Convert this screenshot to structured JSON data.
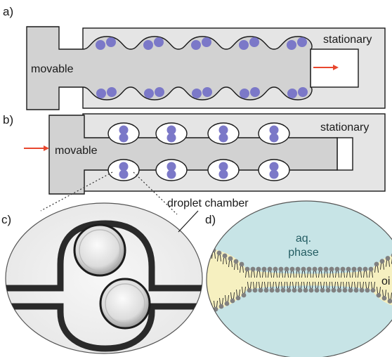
{
  "panels": {
    "a": {
      "letter": "a)",
      "movable": "movable",
      "stationary": "stationary"
    },
    "b": {
      "letter": "b)",
      "movable": "movable",
      "stationary": "stationary"
    },
    "c": {
      "letter": "c)",
      "callout": "droplet chamber"
    },
    "d": {
      "letter": "d)",
      "aq_line1": "aq.",
      "aq_line2": "phase",
      "oil_partial": "oi"
    }
  },
  "colors": {
    "block_fill": "#d2d2d2",
    "outline": "#1a1a1a",
    "droplet": "#7b78c8",
    "arrow": "#e8472e",
    "aqueous": "#c7e4e6",
    "oil": "#f6f0c0",
    "lipid_head": "#808080",
    "aq_text": "#245d63"
  }
}
